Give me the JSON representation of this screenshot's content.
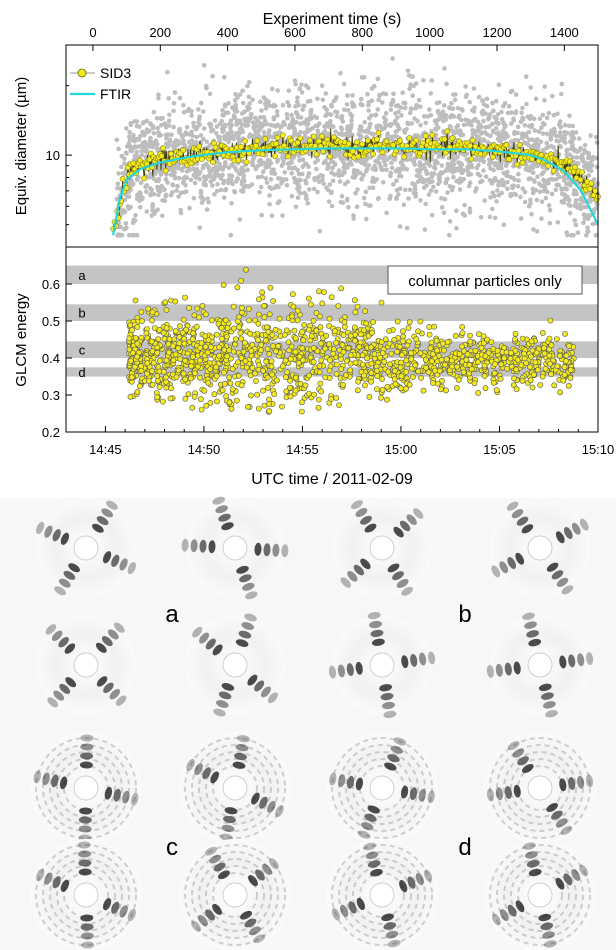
{
  "chart_data": [
    {
      "type": "scatter",
      "title": "",
      "top_axis": {
        "label": "Experiment time (s)",
        "ticks": [
          "0",
          "200",
          "400",
          "600",
          "800",
          "1000",
          "1200",
          "1400"
        ],
        "range": [
          -80,
          1500
        ]
      },
      "ylabel": "Equiv. diameter (µm)",
      "y_scale": "log",
      "y_ticks": [
        "10"
      ],
      "ylim": [
        4,
        30
      ],
      "legend": {
        "placement": "top-left"
      },
      "series": [
        {
          "name": "SID3",
          "style": "yellow markers with running line",
          "color": "#f2ea1c",
          "x_s": [
            60,
            80,
            100,
            140,
            200,
            300,
            400,
            500,
            600,
            700,
            800,
            900,
            1000,
            1100,
            1200,
            1300,
            1400,
            1460,
            1500
          ],
          "y_um": [
            4.5,
            6.2,
            8.0,
            9.0,
            9.6,
            10.0,
            10.4,
            10.7,
            10.8,
            10.9,
            10.8,
            10.9,
            10.8,
            10.7,
            10.5,
            10.0,
            9.0,
            7.6,
            6.4
          ]
        },
        {
          "name": "FTIR",
          "style": "line",
          "color": "#25d4dc",
          "x_s": [
            60,
            80,
            100,
            140,
            200,
            300,
            400,
            500,
            600,
            700,
            800,
            900,
            1000,
            1100,
            1200,
            1300,
            1350,
            1400,
            1450,
            1500
          ],
          "y_um": [
            4.5,
            6.5,
            7.8,
            8.7,
            9.3,
            9.9,
            10.3,
            10.5,
            10.6,
            10.7,
            10.7,
            10.7,
            10.6,
            10.6,
            10.4,
            10.0,
            9.4,
            8.5,
            7.0,
            5.0
          ]
        },
        {
          "name": "",
          "style": "grey background scatter of individual particles",
          "color": "#bdbdbd",
          "x_s": [
            70,
            1500
          ],
          "y_range_um": [
            4.5,
            28
          ]
        }
      ]
    },
    {
      "type": "scatter",
      "title": "",
      "xlabel": "UTC time / 2011-02-09",
      "ylabel": "GLCM energy",
      "x_ticks": [
        "14:45",
        "14:50",
        "14:55",
        "15:00",
        "15:05",
        "15:10"
      ],
      "xlim_min": [
        -2,
        25
      ],
      "y_ticks": [
        "0.2",
        "0.3",
        "0.4",
        "0.5",
        "0.6"
      ],
      "ylim": [
        0.2,
        0.7
      ],
      "annotation": "columnar particles only",
      "bands": [
        {
          "label": "a",
          "y": [
            0.6,
            0.65
          ]
        },
        {
          "label": "b",
          "y": [
            0.5,
            0.545
          ]
        },
        {
          "label": "c",
          "y": [
            0.4,
            0.445
          ]
        },
        {
          "label": "d",
          "y": [
            0.35,
            0.375
          ]
        }
      ],
      "series": [
        {
          "name": "",
          "color": "#f2ea1c",
          "density_profile": [
            {
              "t_min": 1,
              "y_lo": 0.3,
              "y_hi": 0.55
            },
            {
              "t_min": 4,
              "y_lo": 0.28,
              "y_hi": 0.6
            },
            {
              "t_min": 8,
              "y_lo": 0.27,
              "y_hi": 0.64
            },
            {
              "t_min": 12,
              "y_lo": 0.28,
              "y_hi": 0.6
            },
            {
              "t_min": 16,
              "y_lo": 0.3,
              "y_hi": 0.5
            },
            {
              "t_min": 20,
              "y_lo": 0.32,
              "y_hi": 0.5
            },
            {
              "t_min": 24,
              "y_lo": 0.32,
              "y_hi": 0.47
            }
          ]
        }
      ]
    }
  ],
  "image_panels": {
    "labels": [
      "a",
      "b",
      "c",
      "d"
    ],
    "rows": 4,
    "cols": 4
  }
}
